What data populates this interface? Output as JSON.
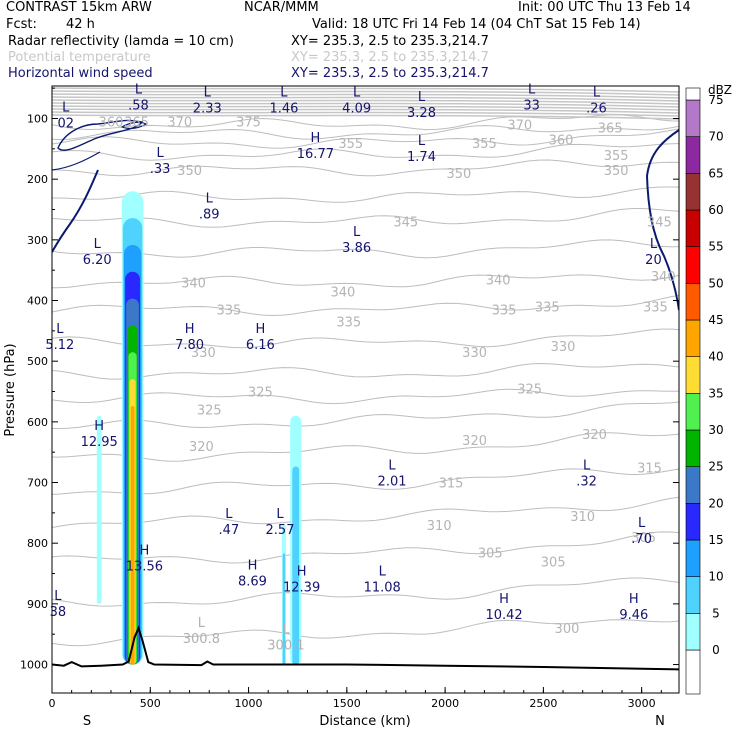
{
  "header": {
    "model": "CONTRAST 15km ARW",
    "center": "NCAR/MMM",
    "init": "Init: 00 UTC Thu 13 Feb 14",
    "fcst_label": "Fcst:",
    "fcst_value": "42 h",
    "valid": "Valid: 18 UTC Fri 14 Feb 14 (04 ChT Sat 15 Feb 14)"
  },
  "fields": [
    {
      "name": "Radar reflectivity (lamda = 10 cm)",
      "xy": "XY= 235.3,  2.5 to 235.3,214.7",
      "color": "#000000"
    },
    {
      "name": "Potential temperature",
      "xy": "XY= 235.3,  2.5 to 235.3,214.7",
      "color": "#c8c8c8"
    },
    {
      "name": "Horizontal wind speed",
      "xy": "XY= 235.3,  2.5 to 235.3,214.7",
      "color": "#14146e"
    }
  ],
  "chart_data": {
    "type": "cross-section",
    "xlabel": "Distance (km)",
    "ylabel": "Pressure (hPa)",
    "xlim": [
      0,
      3190
    ],
    "ylim": [
      1048,
      50
    ],
    "x_ticks": [
      0,
      500,
      1000,
      1500,
      2000,
      2500,
      3000
    ],
    "y_ticks": [
      100,
      200,
      300,
      400,
      500,
      600,
      700,
      800,
      900,
      1000
    ],
    "x_end_labels": {
      "left": "S",
      "right": "N"
    },
    "colorbar": {
      "units": "dBZ",
      "levels": [
        0,
        5,
        10,
        15,
        20,
        25,
        30,
        35,
        40,
        45,
        50,
        55,
        60,
        65,
        70,
        75
      ],
      "colors": [
        "#ffffff",
        "#a0ffff",
        "#50d2ff",
        "#1ea0ff",
        "#2828ff",
        "#3c78c8",
        "#00b400",
        "#50f050",
        "#ffdc32",
        "#ffa500",
        "#ff5a00",
        "#ff0000",
        "#c80000",
        "#963232",
        "#8c28a0",
        "#b478c8"
      ]
    },
    "reflectivity": [
      {
        "x": 240,
        "p_top": 590,
        "p_bot": 900,
        "half_width": 12,
        "max_level": 1
      },
      {
        "x": 410,
        "p_top": 220,
        "p_bot": 1000,
        "half_width": 55,
        "max_level": 9
      },
      {
        "x": 1180,
        "p_top": 770,
        "p_bot": 1000,
        "half_width": 10,
        "max_level": 2
      },
      {
        "x": 1240,
        "p_top": 590,
        "p_bot": 1000,
        "half_width": 28,
        "max_level": 2
      }
    ],
    "theta_labels": [
      {
        "x": 300,
        "p": 105,
        "text": "360"
      },
      {
        "x": 430,
        "p": 105,
        "text": "365"
      },
      {
        "x": 650,
        "p": 105,
        "text": "370"
      },
      {
        "x": 1000,
        "p": 105,
        "text": "375"
      },
      {
        "x": 2380,
        "p": 110,
        "text": "370"
      },
      {
        "x": 2840,
        "p": 115,
        "text": "365"
      },
      {
        "x": 2590,
        "p": 135,
        "text": "360"
      },
      {
        "x": 1520,
        "p": 140,
        "text": "355"
      },
      {
        "x": 2200,
        "p": 140,
        "text": "355"
      },
      {
        "x": 2870,
        "p": 160,
        "text": "355"
      },
      {
        "x": 700,
        "p": 185,
        "text": "350"
      },
      {
        "x": 2070,
        "p": 190,
        "text": "350"
      },
      {
        "x": 2870,
        "p": 185,
        "text": "350"
      },
      {
        "x": 1800,
        "p": 270,
        "text": "345"
      },
      {
        "x": 3090,
        "p": 270,
        "text": "345"
      },
      {
        "x": 720,
        "p": 370,
        "text": "340"
      },
      {
        "x": 1480,
        "p": 385,
        "text": "340"
      },
      {
        "x": 2270,
        "p": 365,
        "text": "340"
      },
      {
        "x": 3110,
        "p": 360,
        "text": "340"
      },
      {
        "x": 900,
        "p": 415,
        "text": "335"
      },
      {
        "x": 1510,
        "p": 435,
        "text": "335"
      },
      {
        "x": 2300,
        "p": 415,
        "text": "335"
      },
      {
        "x": 2520,
        "p": 410,
        "text": "335"
      },
      {
        "x": 3070,
        "p": 410,
        "text": "335"
      },
      {
        "x": 770,
        "p": 485,
        "text": "330"
      },
      {
        "x": 2150,
        "p": 485,
        "text": "330"
      },
      {
        "x": 2600,
        "p": 475,
        "text": "330"
      },
      {
        "x": 1060,
        "p": 550,
        "text": "325"
      },
      {
        "x": 800,
        "p": 580,
        "text": "325"
      },
      {
        "x": 2430,
        "p": 545,
        "text": "325"
      },
      {
        "x": 760,
        "p": 640,
        "text": "320"
      },
      {
        "x": 2150,
        "p": 630,
        "text": "320"
      },
      {
        "x": 2760,
        "p": 620,
        "text": "320"
      },
      {
        "x": 3040,
        "p": 675,
        "text": "315"
      },
      {
        "x": 2030,
        "p": 700,
        "text": "315"
      },
      {
        "x": 1970,
        "p": 770,
        "text": "310"
      },
      {
        "x": 2700,
        "p": 755,
        "text": "310"
      },
      {
        "x": 3010,
        "p": 790,
        "text": "305"
      },
      {
        "x": 2230,
        "p": 815,
        "text": "305"
      },
      {
        "x": 2550,
        "p": 830,
        "text": "305"
      },
      {
        "x": 2620,
        "p": 940,
        "text": "300"
      }
    ],
    "wind_extrema": [
      {
        "kind": "L",
        "x": 440,
        "p": 75,
        "value": ".58"
      },
      {
        "kind": "L",
        "x": 790,
        "p": 80,
        "value": "2.33"
      },
      {
        "kind": "L",
        "x": 1180,
        "p": 80,
        "value": "1.46"
      },
      {
        "kind": "L",
        "x": 1550,
        "p": 80,
        "value": "4.09"
      },
      {
        "kind": "L",
        "x": 1880,
        "p": 88,
        "value": "3.28"
      },
      {
        "kind": "L",
        "x": 2440,
        "p": 75,
        "value": "33"
      },
      {
        "kind": "L",
        "x": 2770,
        "p": 80,
        "value": ".26"
      },
      {
        "kind": "L",
        "x": 70,
        "p": 105,
        "value": "02"
      },
      {
        "kind": "H",
        "x": 1340,
        "p": 155,
        "value": "16.77"
      },
      {
        "kind": "L",
        "x": 1880,
        "p": 160,
        "value": "1.74"
      },
      {
        "kind": "L",
        "x": 550,
        "p": 180,
        "value": ".33"
      },
      {
        "kind": "L",
        "x": 800,
        "p": 255,
        "value": ".89"
      },
      {
        "kind": "L",
        "x": 1550,
        "p": 310,
        "value": "3.86"
      },
      {
        "kind": "L",
        "x": 230,
        "p": 330,
        "value": "6.20"
      },
      {
        "kind": "L",
        "x": 3060,
        "p": 330,
        "value": "20"
      },
      {
        "kind": "L",
        "x": 40,
        "p": 470,
        "value": "5.12"
      },
      {
        "kind": "H",
        "x": 700,
        "p": 470,
        "value": "7.80"
      },
      {
        "kind": "H",
        "x": 1060,
        "p": 470,
        "value": "6.16"
      },
      {
        "kind": "H",
        "x": 240,
        "p": 630,
        "value": "12.95"
      },
      {
        "kind": "L",
        "x": 1730,
        "p": 695,
        "value": "2.01"
      },
      {
        "kind": "L",
        "x": 2720,
        "p": 695,
        "value": ".32"
      },
      {
        "kind": "L",
        "x": 900,
        "p": 775,
        "value": ".47"
      },
      {
        "kind": "L",
        "x": 1160,
        "p": 775,
        "value": "2.57"
      },
      {
        "kind": "L",
        "x": 3000,
        "p": 790,
        "value": ".70"
      },
      {
        "kind": "H",
        "x": 470,
        "p": 835,
        "value": "13.56"
      },
      {
        "kind": "H",
        "x": 1020,
        "p": 860,
        "value": "8.69"
      },
      {
        "kind": "H",
        "x": 1270,
        "p": 870,
        "value": "12.39"
      },
      {
        "kind": "L",
        "x": 1680,
        "p": 870,
        "value": "11.08"
      },
      {
        "kind": "H",
        "x": 2300,
        "p": 915,
        "value": "10.42"
      },
      {
        "kind": "H",
        "x": 2960,
        "p": 915,
        "value": "9.46"
      },
      {
        "kind": "L",
        "x": 30,
        "p": 910,
        "value": "38"
      },
      {
        "kind": "L",
        "x": 760,
        "p": 955,
        "value": "300.8"
      },
      {
        "kind": "L",
        "x": 1190,
        "p": 965,
        "value": "300.1"
      }
    ]
  }
}
